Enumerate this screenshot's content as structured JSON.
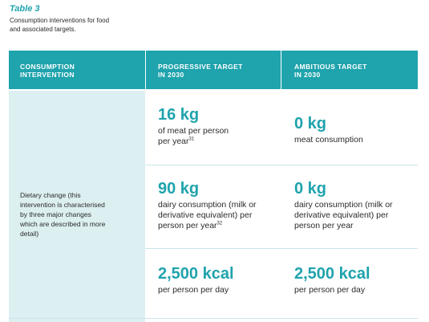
{
  "caption": {
    "label": "Table 3",
    "text_line1": "Consumption interventions for food",
    "text_line2": "and associated targets."
  },
  "table": {
    "headers": {
      "col1_line1": "CONSUMPTION",
      "col1_line2": "INTERVENTION",
      "col2_line1": "PROGRESSIVE TARGET",
      "col2_line2": "IN 2030",
      "col3_line1": "AMBITIOUS TARGET",
      "col3_line2": "IN 2030"
    },
    "intervention": {
      "line1": "Dietary change (this",
      "line2": "intervention is characterised",
      "line3": "by three major changes",
      "line4": "which are described in more",
      "line5": "detail)"
    },
    "rows": [
      {
        "progressive_value": "16 kg",
        "progressive_line1": "of meat per person",
        "progressive_line2": "per year",
        "progressive_sup": "31",
        "ambitious_value": "0 kg",
        "ambitious_line1": "meat consumption"
      },
      {
        "progressive_value": "90 kg",
        "progressive_line1": "dairy consumption (milk or",
        "progressive_line2": "derivative equivalent) per",
        "progressive_line3": "person per year",
        "progressive_sup": "32",
        "ambitious_value": "0 kg",
        "ambitious_line1": "dairy consumption (milk or",
        "ambitious_line2": "derivative equivalent) per",
        "ambitious_line3": "person per year"
      },
      {
        "progressive_value": "2,500 kcal",
        "progressive_line1": "per person per day",
        "ambitious_value": "2,500 kcal",
        "ambitious_line1": "per person per day"
      }
    ]
  },
  "colors": {
    "accent": "#1fa3ad",
    "left_column_bg": "#dceff1",
    "text": "#2b2b2b"
  }
}
